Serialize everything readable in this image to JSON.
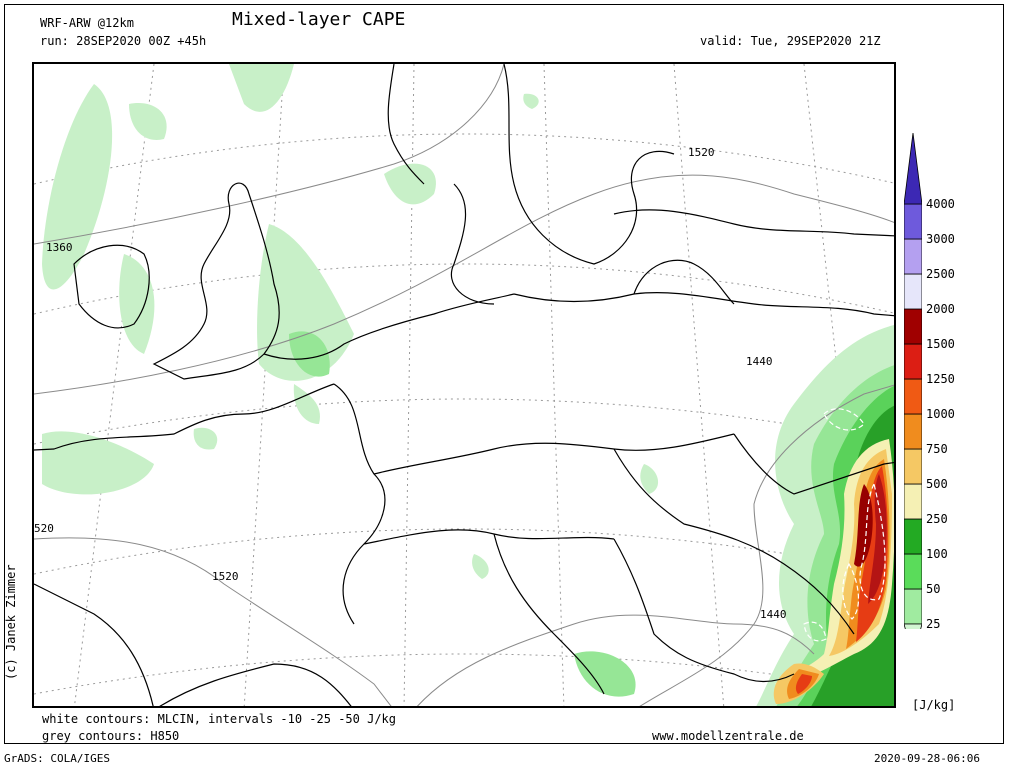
{
  "header": {
    "model": "WRF-ARW @12km",
    "title": "Mixed-layer CAPE",
    "run": "run: 28SEP2020 00Z +45h",
    "valid": "valid: Tue, 29SEP2020 21Z"
  },
  "map": {
    "contour_labels": [
      "1520",
      "1360",
      "1440",
      "520",
      "1520",
      "1440"
    ],
    "colors": {
      "green_light": "#c8f0c8",
      "green_mid": "#96e696",
      "green": "#5ad25a",
      "green_dark": "#28a028",
      "yellow_pale": "#f5f0b4",
      "orange_light": "#f5c864",
      "orange": "#f08c1e",
      "red": "#e63c14",
      "red_dark": "#b41414",
      "maroon": "#960000"
    }
  },
  "legend": {
    "units": "[J/kg]",
    "levels": [
      "25",
      "50",
      "100",
      "250",
      "500",
      "750",
      "1000",
      "1250",
      "1500",
      "2000",
      "2500",
      "3000",
      "4000"
    ],
    "colors": [
      "#d2f5d2",
      "#a0eba0",
      "#5adc5a",
      "#23aa23",
      "#f5f0b4",
      "#f5c864",
      "#f08c1e",
      "#f05a14",
      "#dc1e14",
      "#a00000",
      "#e6e6fa",
      "#b4a0f0",
      "#6e5adc",
      "#3c28b4"
    ]
  },
  "footer": {
    "white_contours": "white contours: MLCIN, intervals -10 -25 -50 J/kg",
    "grey_contours": "grey contours: H850",
    "website": "www.modellzentrale.de",
    "grads": "GrADS: COLA/IGES",
    "timestamp": "2020-09-28-06:06",
    "credit": "(c) Janek Zimmer"
  }
}
